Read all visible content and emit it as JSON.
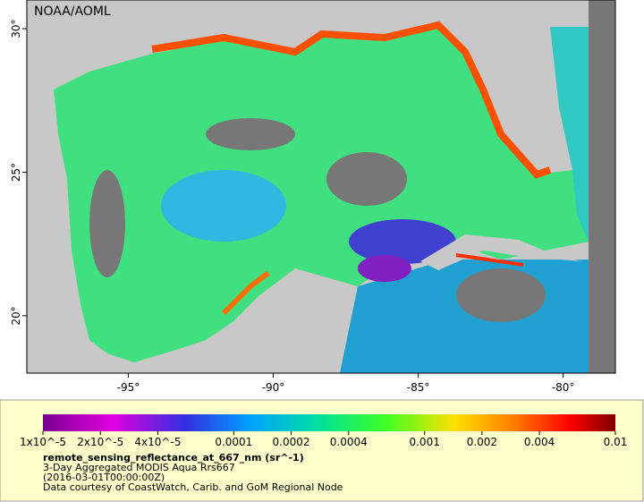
{
  "map": {
    "watermark": "NOAA/AOML",
    "xlim": [
      -98.5,
      -78.2
    ],
    "ylim": [
      18,
      31
    ],
    "xticks": [
      {
        "value": -95,
        "label": "-95°"
      },
      {
        "value": -90,
        "label": "-90°"
      },
      {
        "value": -85,
        "label": "-85°"
      },
      {
        "value": -80,
        "label": "-80°"
      }
    ],
    "yticks": [
      {
        "value": 20,
        "label": "20°"
      },
      {
        "value": 25,
        "label": "25°"
      },
      {
        "value": 30,
        "label": "30°"
      }
    ]
  },
  "colorbar": {
    "scale": "log",
    "lim": [
      1e-05,
      0.01
    ],
    "ticks": [
      {
        "value": 1e-05,
        "label": "1x10^-5"
      },
      {
        "value": 2e-05,
        "label": "2x10^-5"
      },
      {
        "value": 4e-05,
        "label": "4x10^-5"
      },
      0.0001,
      0.0002,
      0.0004,
      0.001,
      0.002,
      0.004,
      0.01
    ]
  },
  "caption": {
    "variable": "remote_sensing_reflectance_at_667_nm (sr^-1)",
    "product": "3-Day Aggregated MODIS Aqua Rrs667",
    "date": "(2016-03-01T00:00:00Z)",
    "credit": "Data courtesy of CoastWatch, Carib. and GoM Regional Node"
  }
}
